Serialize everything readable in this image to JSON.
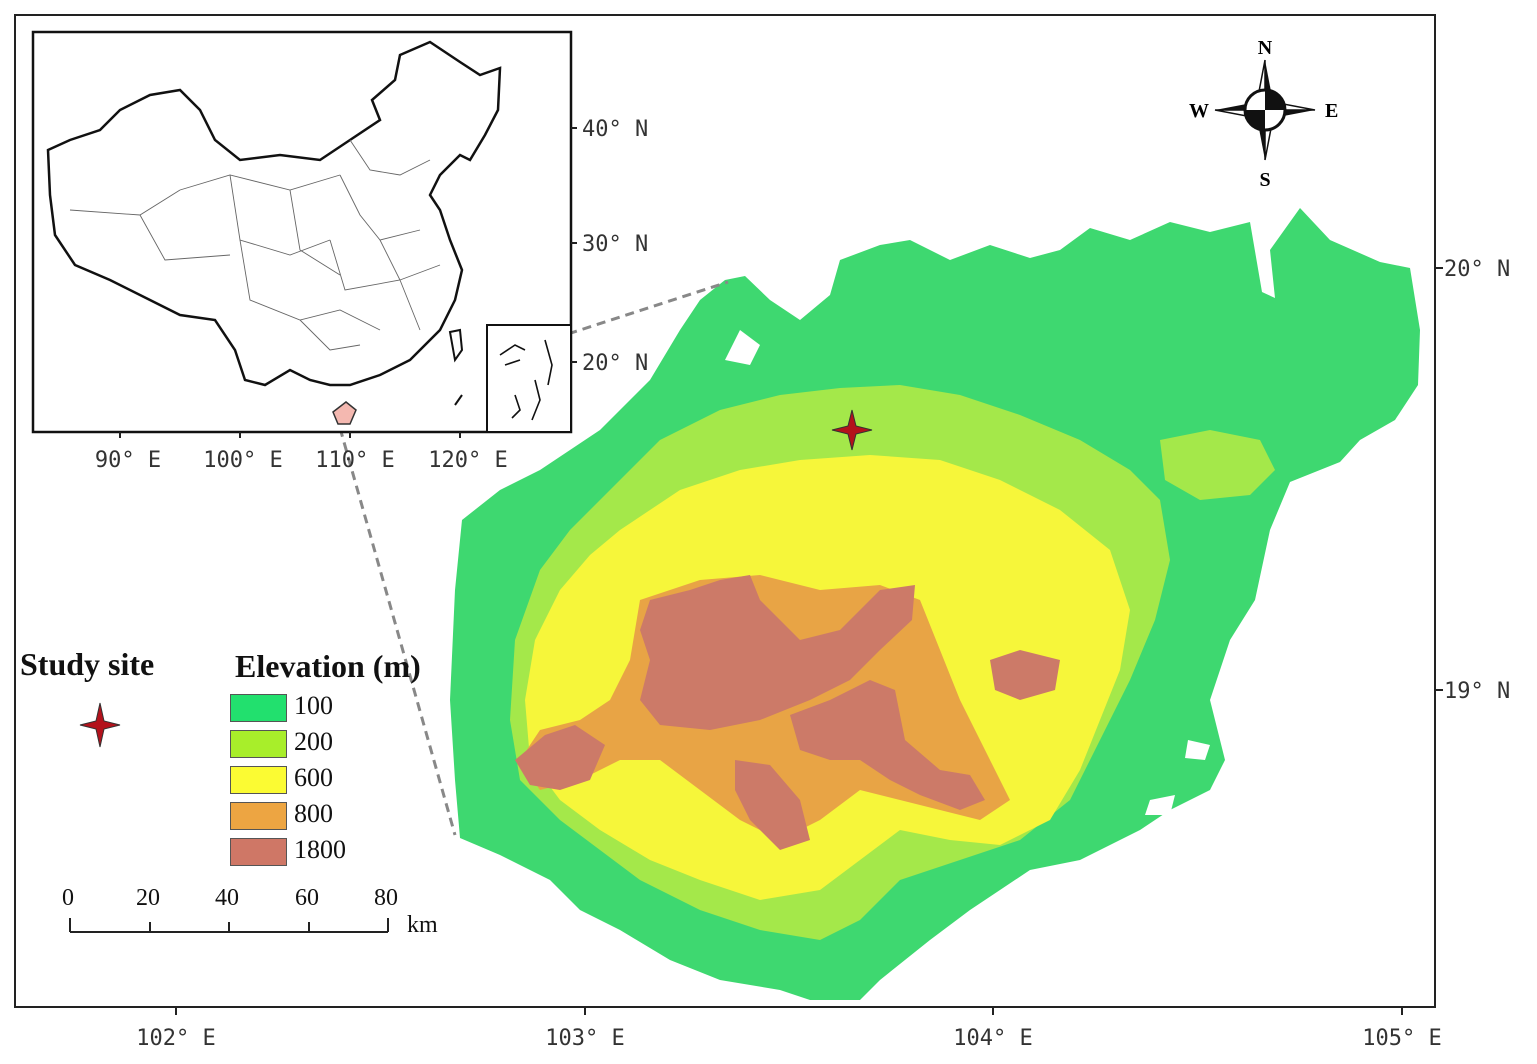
{
  "legend": {
    "study_site_title": "Study site",
    "elevation_title": "Elevation (m)",
    "classes": [
      {
        "label": "100",
        "color": "#22e06e"
      },
      {
        "label": "200",
        "color": "#a8ee2a"
      },
      {
        "label": "600",
        "color": "#fbfb33"
      },
      {
        "label": "800",
        "color": "#eda542"
      },
      {
        "label": "1800",
        "color": "#cf7766"
      }
    ]
  },
  "scale_bar": {
    "ticks": [
      "0",
      "20",
      "40",
      "60",
      "80"
    ],
    "unit": "km"
  },
  "compass": {
    "n": "N",
    "s": "S",
    "e": "E",
    "w": "W"
  },
  "main_map": {
    "x_ticks": [
      "102° E",
      "103° E",
      "104° E",
      "105° E"
    ],
    "y_ticks": [
      "20° N",
      "19° N"
    ],
    "colors": {
      "c100": "#3ed870",
      "c200": "#a4e84a",
      "c600": "#f6f63a",
      "c800": "#e8a445",
      "c1800": "#cc7a68"
    }
  },
  "inset_map": {
    "x_ticks": [
      "90° E",
      "100° E",
      "110° E",
      "120° E"
    ],
    "y_ticks": [
      "40° N",
      "30° N",
      "20° N"
    ],
    "highlight_color": "#f4b8b0"
  }
}
